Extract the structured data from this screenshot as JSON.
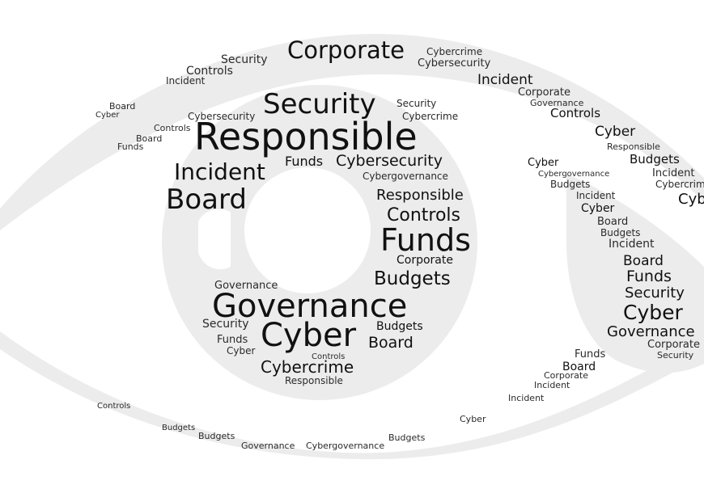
{
  "image": {
    "subject": "word-cloud-eye",
    "palette": {
      "ink": "#111111",
      "ink_soft": "#2a2a2a",
      "shape": "#ececec",
      "background": "#ffffff"
    }
  },
  "words": {
    "corporate": "Corporate",
    "security": "Security",
    "responsible": "Responsible",
    "incident": "Incident",
    "board": "Board",
    "funds": "Funds",
    "cybersecurity": "Cybersecurity",
    "cybergovernance": "Cybergovernance",
    "controls": "Controls",
    "budgets": "Budgets",
    "governance": "Governance",
    "cyber": "Cyber",
    "cybercrime": "Cybercrime"
  }
}
